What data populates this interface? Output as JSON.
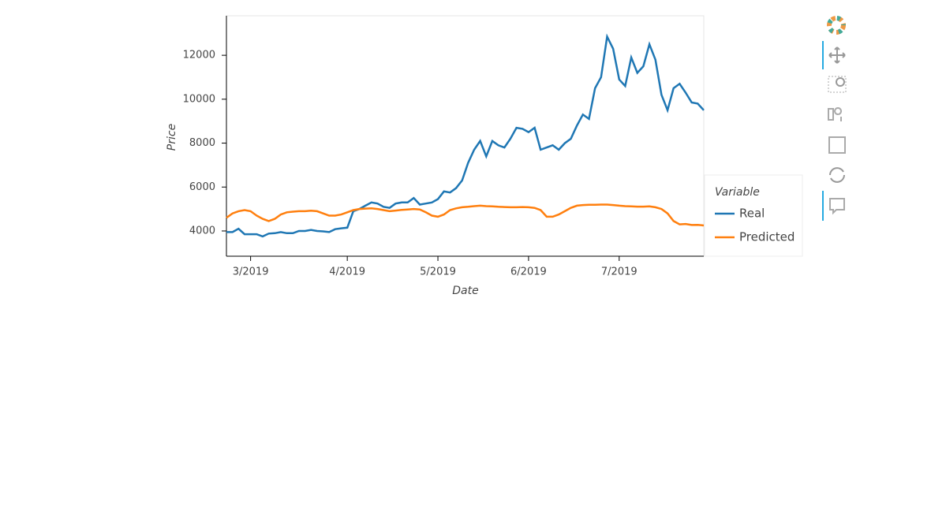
{
  "chart_data": {
    "type": "line",
    "x_label": "Date",
    "y_label": "Price",
    "legend_title": "Variable",
    "legend": "right",
    "categories": [
      null,
      null,
      null,
      null,
      "3/2019",
      null,
      null,
      null,
      null,
      null,
      null,
      null,
      null,
      null,
      null,
      null,
      null,
      null,
      null,
      null,
      "4/2019",
      null,
      null,
      null,
      null,
      null,
      null,
      null,
      null,
      null,
      null,
      null,
      null,
      null,
      null,
      "5/2019",
      null,
      null,
      null,
      null,
      null,
      null,
      null,
      null,
      null,
      null,
      null,
      null,
      null,
      null,
      "6/2019",
      null,
      null,
      null,
      null,
      null,
      null,
      null,
      null,
      null,
      null,
      null,
      null,
      null,
      null,
      "7/2019",
      null,
      null,
      null,
      null,
      null,
      null,
      null,
      null,
      null,
      null,
      null,
      null,
      null,
      null
    ],
    "series": [
      {
        "name": "Real",
        "color": "#1f77b4",
        "values": [
          3950,
          3950,
          4100,
          3850,
          3850,
          3850,
          3750,
          3880,
          3900,
          3950,
          3900,
          3900,
          4000,
          4000,
          4050,
          4000,
          3980,
          3950,
          4080,
          4120,
          4150,
          4900,
          5000,
          5150,
          5300,
          5250,
          5100,
          5050,
          5250,
          5300,
          5300,
          5500,
          5200,
          5250,
          5300,
          5450,
          5800,
          5750,
          5950,
          6300,
          7100,
          7700,
          8100,
          7400,
          8100,
          7900,
          7800,
          8200,
          8700,
          8650,
          8500,
          8700,
          7700,
          7800,
          7900,
          7700,
          8000,
          8200,
          8800,
          9300,
          9100,
          10500,
          11000,
          12850,
          12300,
          10900,
          10600,
          11900,
          11200,
          11500,
          12500,
          11800,
          10200,
          9500,
          10500,
          10700,
          10300,
          9850,
          9800,
          9500
        ]
      },
      {
        "name": "Predicted",
        "color": "#ff7f0e",
        "values": [
          4600,
          4800,
          4900,
          4950,
          4900,
          4700,
          4550,
          4450,
          4550,
          4750,
          4850,
          4880,
          4900,
          4900,
          4920,
          4900,
          4800,
          4700,
          4700,
          4750,
          4850,
          4950,
          5000,
          5020,
          5030,
          5000,
          4950,
          4900,
          4930,
          4960,
          4980,
          5000,
          4980,
          4850,
          4700,
          4650,
          4750,
          4950,
          5030,
          5080,
          5100,
          5130,
          5150,
          5130,
          5120,
          5100,
          5090,
          5080,
          5080,
          5090,
          5080,
          5050,
          4950,
          4650,
          4650,
          4750,
          4900,
          5050,
          5150,
          5180,
          5190,
          5190,
          5200,
          5200,
          5180,
          5150,
          5130,
          5120,
          5110,
          5110,
          5120,
          5080,
          5000,
          4800,
          4450,
          4300,
          4320,
          4270,
          4280,
          4250
        ]
      }
    ],
    "ylim": [
      2850,
      13800
    ],
    "yticks": [
      4000,
      6000,
      8000,
      10000,
      12000
    ],
    "grid": false
  }
}
